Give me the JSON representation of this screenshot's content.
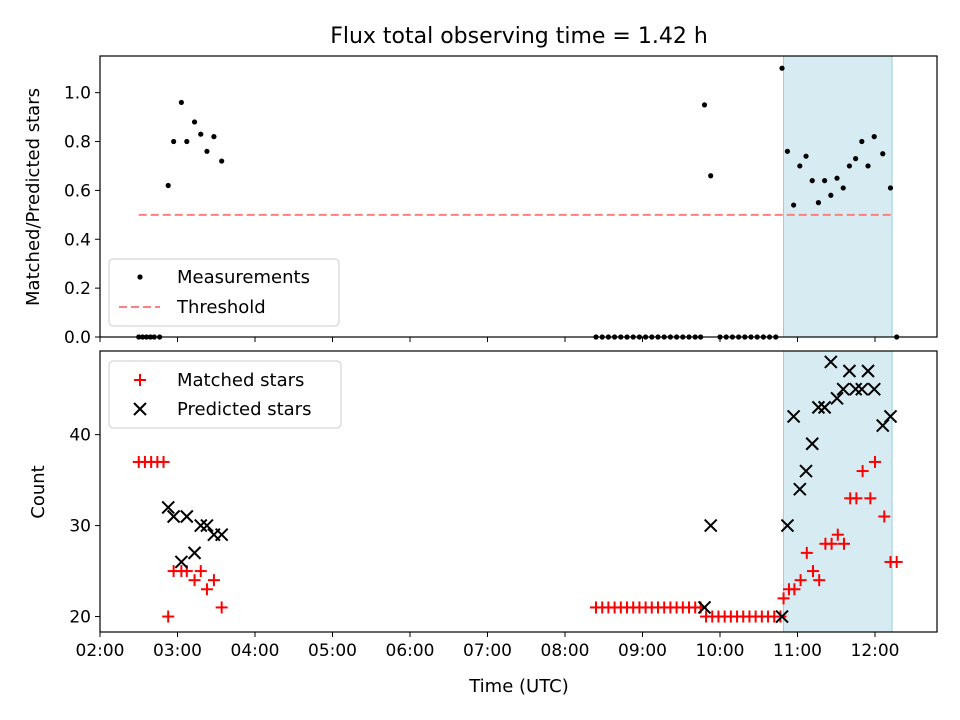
{
  "title": "Flux total observing time = 1.42 h",
  "chart_data": [
    {
      "type": "scatter",
      "panel": "top",
      "ylabel": "Matched/Predicted stars",
      "ylim": [
        0,
        1.15
      ],
      "yticks": [
        0.0,
        0.2,
        0.4,
        0.6,
        0.8,
        1.0
      ],
      "ytick_labels": [
        "0.0",
        "0.2",
        "0.4",
        "0.6",
        "0.8",
        "1.0"
      ],
      "xlim": [
        2.0,
        12.8
      ],
      "shaded_span": [
        10.82,
        12.22
      ],
      "series": [
        {
          "name": "Measurements",
          "marker": "dot",
          "color": "#000000",
          "points": [
            [
              2.5,
              0
            ],
            [
              2.55,
              0
            ],
            [
              2.6,
              0
            ],
            [
              2.65,
              0
            ],
            [
              2.7,
              0
            ],
            [
              2.77,
              0
            ],
            [
              2.88,
              0.62
            ],
            [
              2.95,
              0.8
            ],
            [
              3.05,
              0.96
            ],
            [
              3.12,
              0.8
            ],
            [
              3.22,
              0.88
            ],
            [
              3.3,
              0.83
            ],
            [
              3.38,
              0.76
            ],
            [
              3.47,
              0.82
            ],
            [
              3.57,
              0.72
            ],
            [
              8.4,
              0
            ],
            [
              8.48,
              0
            ],
            [
              8.56,
              0
            ],
            [
              8.64,
              0
            ],
            [
              8.72,
              0
            ],
            [
              8.8,
              0
            ],
            [
              8.88,
              0
            ],
            [
              8.96,
              0
            ],
            [
              9.04,
              0
            ],
            [
              9.12,
              0
            ],
            [
              9.2,
              0
            ],
            [
              9.28,
              0
            ],
            [
              9.36,
              0
            ],
            [
              9.44,
              0
            ],
            [
              9.52,
              0
            ],
            [
              9.6,
              0
            ],
            [
              9.68,
              0
            ],
            [
              9.75,
              0
            ],
            [
              9.8,
              0.95
            ],
            [
              9.88,
              0.66
            ],
            [
              10.0,
              0
            ],
            [
              10.08,
              0
            ],
            [
              10.16,
              0
            ],
            [
              10.24,
              0
            ],
            [
              10.32,
              0
            ],
            [
              10.4,
              0
            ],
            [
              10.48,
              0
            ],
            [
              10.56,
              0
            ],
            [
              10.64,
              0
            ],
            [
              10.72,
              0
            ],
            [
              10.8,
              1.1
            ],
            [
              10.87,
              0.76
            ],
            [
              10.95,
              0.54
            ],
            [
              11.03,
              0.7
            ],
            [
              11.11,
              0.74
            ],
            [
              11.19,
              0.64
            ],
            [
              11.27,
              0.55
            ],
            [
              11.35,
              0.64
            ],
            [
              11.43,
              0.58
            ],
            [
              11.51,
              0.65
            ],
            [
              11.59,
              0.61
            ],
            [
              11.67,
              0.7
            ],
            [
              11.75,
              0.73
            ],
            [
              11.83,
              0.8
            ],
            [
              11.91,
              0.7
            ],
            [
              11.99,
              0.82
            ],
            [
              12.1,
              0.75
            ],
            [
              12.2,
              0.61
            ],
            [
              12.28,
              0
            ]
          ]
        },
        {
          "name": "Threshold",
          "marker": "dashed-line",
          "color": "#ff7f7f",
          "y": 0.5,
          "x_range": [
            2.5,
            12.22
          ]
        }
      ],
      "legend": "lower-left"
    },
    {
      "type": "scatter",
      "panel": "bottom",
      "xlabel": "Time (UTC)",
      "ylabel": "Count",
      "ylim": [
        18.3,
        49.2
      ],
      "yticks": [
        20,
        30,
        40
      ],
      "ytick_labels": [
        "20",
        "30",
        "40"
      ],
      "xlim": [
        2.0,
        12.8
      ],
      "xticks": [
        2,
        3,
        4,
        5,
        6,
        7,
        8,
        9,
        10,
        11,
        12
      ],
      "xtick_labels": [
        "02:00",
        "03:00",
        "04:00",
        "05:00",
        "06:00",
        "07:00",
        "08:00",
        "09:00",
        "10:00",
        "11:00",
        "12:00"
      ],
      "shaded_span": [
        10.82,
        12.22
      ],
      "series": [
        {
          "name": "Matched stars",
          "marker": "plus",
          "color": "#ff0000",
          "points": [
            [
              2.5,
              37
            ],
            [
              2.58,
              37
            ],
            [
              2.66,
              37
            ],
            [
              2.74,
              37
            ],
            [
              2.82,
              37
            ],
            [
              2.88,
              20
            ],
            [
              2.95,
              25
            ],
            [
              3.05,
              25
            ],
            [
              3.12,
              25
            ],
            [
              3.22,
              24
            ],
            [
              3.3,
              25
            ],
            [
              3.38,
              23
            ],
            [
              3.47,
              24
            ],
            [
              3.57,
              21
            ],
            [
              8.4,
              21
            ],
            [
              8.48,
              21
            ],
            [
              8.56,
              21
            ],
            [
              8.64,
              21
            ],
            [
              8.72,
              21
            ],
            [
              8.8,
              21
            ],
            [
              8.88,
              21
            ],
            [
              8.96,
              21
            ],
            [
              9.04,
              21
            ],
            [
              9.12,
              21
            ],
            [
              9.2,
              21
            ],
            [
              9.28,
              21
            ],
            [
              9.36,
              21
            ],
            [
              9.44,
              21
            ],
            [
              9.52,
              21
            ],
            [
              9.6,
              21
            ],
            [
              9.68,
              21
            ],
            [
              9.75,
              21
            ],
            [
              9.82,
              20
            ],
            [
              9.9,
              20
            ],
            [
              9.98,
              20
            ],
            [
              10.06,
              20
            ],
            [
              10.14,
              20
            ],
            [
              10.22,
              20
            ],
            [
              10.3,
              20
            ],
            [
              10.38,
              20
            ],
            [
              10.46,
              20
            ],
            [
              10.54,
              20
            ],
            [
              10.62,
              20
            ],
            [
              10.7,
              20
            ],
            [
              10.78,
              20
            ],
            [
              10.82,
              22
            ],
            [
              10.89,
              23
            ],
            [
              10.96,
              23
            ],
            [
              11.04,
              24
            ],
            [
              11.12,
              27
            ],
            [
              11.2,
              25
            ],
            [
              11.28,
              24
            ],
            [
              11.36,
              28
            ],
            [
              11.44,
              28
            ],
            [
              11.52,
              29
            ],
            [
              11.6,
              28
            ],
            [
              11.68,
              33
            ],
            [
              11.76,
              33
            ],
            [
              11.84,
              36
            ],
            [
              11.94,
              33
            ],
            [
              12.0,
              37
            ],
            [
              12.12,
              31
            ],
            [
              12.2,
              26
            ],
            [
              12.28,
              26
            ]
          ]
        },
        {
          "name": "Predicted stars",
          "marker": "x",
          "color": "#000000",
          "points": [
            [
              2.88,
              32
            ],
            [
              2.95,
              31
            ],
            [
              3.05,
              26
            ],
            [
              3.12,
              31
            ],
            [
              3.22,
              27
            ],
            [
              3.3,
              30
            ],
            [
              3.38,
              30
            ],
            [
              3.47,
              29
            ],
            [
              3.57,
              29
            ],
            [
              9.8,
              21
            ],
            [
              9.88,
              30
            ],
            [
              10.8,
              20
            ],
            [
              10.87,
              30
            ],
            [
              10.95,
              42
            ],
            [
              11.03,
              34
            ],
            [
              11.11,
              36
            ],
            [
              11.19,
              39
            ],
            [
              11.27,
              43
            ],
            [
              11.35,
              43
            ],
            [
              11.43,
              48
            ],
            [
              11.51,
              44
            ],
            [
              11.59,
              45
            ],
            [
              11.67,
              47
            ],
            [
              11.75,
              45
            ],
            [
              11.83,
              45
            ],
            [
              11.91,
              47
            ],
            [
              11.99,
              45
            ],
            [
              12.1,
              41
            ],
            [
              12.2,
              42
            ]
          ]
        }
      ],
      "legend": "upper-left"
    }
  ]
}
